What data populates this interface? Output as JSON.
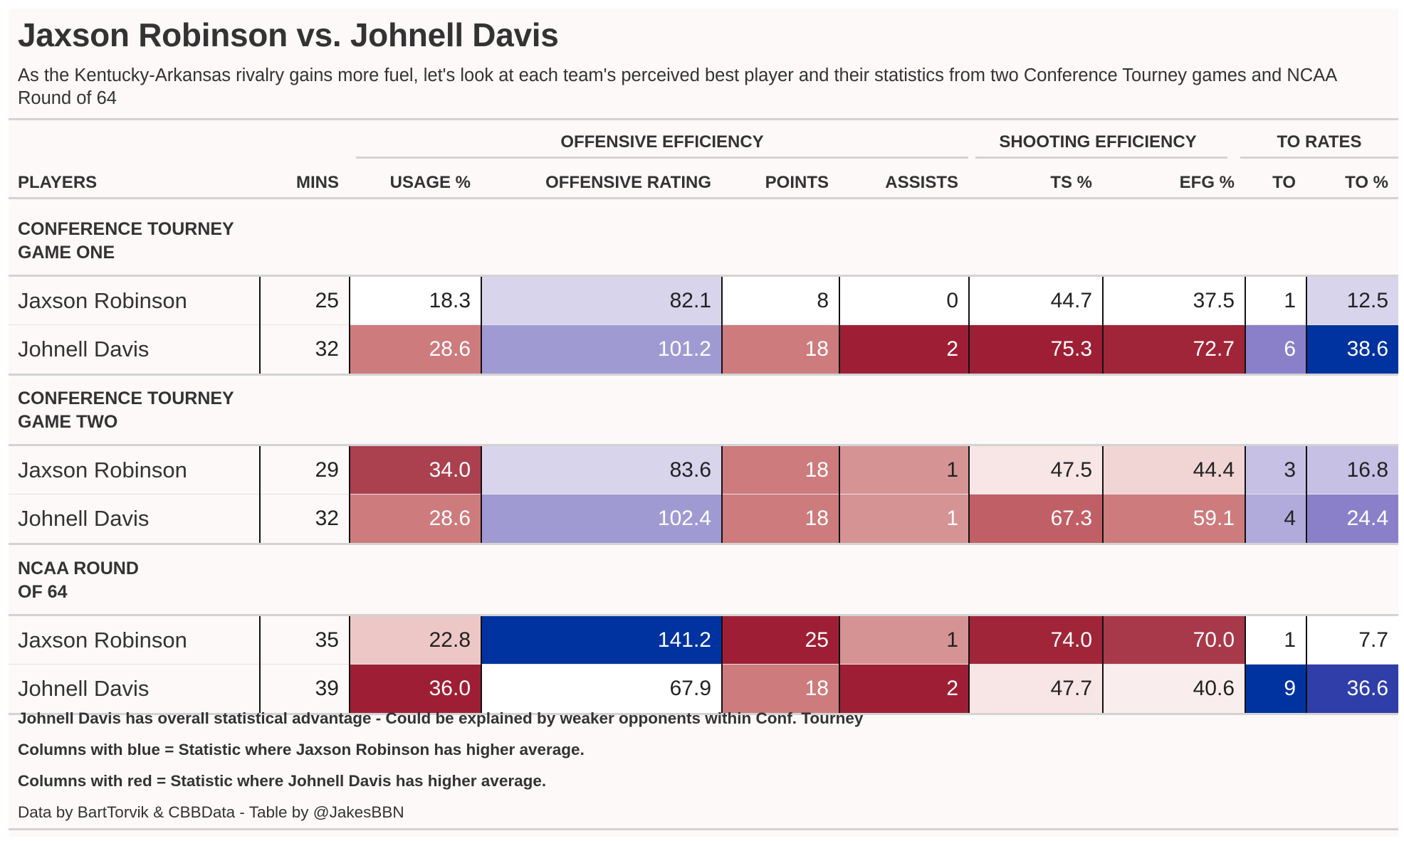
{
  "title": "Jaxson Robinson vs. Johnell Davis",
  "subtitle": "As the Kentucky-Arkansas rivalry gains more fuel, let's look at each team's perceived best player and their statistics from two Conference Tourney games and NCAA Round of 64",
  "spanners": [
    {
      "label": "OFFENSIVE EFFICIENCY"
    },
    {
      "label": "SHOOTING EFFICIENCY"
    },
    {
      "label": "TO RATES"
    }
  ],
  "columns": [
    "PLAYERS",
    "MINS",
    "USAGE %",
    "OFFENSIVE RATING",
    "POINTS",
    "ASSISTS",
    "TS %",
    "EFG %",
    "TO",
    "TO %"
  ],
  "groups": [
    {
      "label_line1": "CONFERENCE TOURNEY",
      "label_line2": "GAME ONE",
      "rows": [
        {
          "player": "Jaxson Robinson",
          "cells": [
            {
              "v": "25",
              "bg": "transparent",
              "fg": "#222222"
            },
            {
              "v": "18.3",
              "bg": "#ffffff",
              "fg": "#222222"
            },
            {
              "v": "82.1",
              "bg": "#d7d4ec",
              "fg": "#222222"
            },
            {
              "v": "8",
              "bg": "#ffffff",
              "fg": "#222222"
            },
            {
              "v": "0",
              "bg": "#ffffff",
              "fg": "#222222"
            },
            {
              "v": "44.7",
              "bg": "#ffffff",
              "fg": "#222222"
            },
            {
              "v": "37.5",
              "bg": "#ffffff",
              "fg": "#222222"
            },
            {
              "v": "1",
              "bg": "#ffffff",
              "fg": "#222222"
            },
            {
              "v": "12.5",
              "bg": "#d7d4ec",
              "fg": "#222222"
            }
          ]
        },
        {
          "player": "Johnell Davis",
          "cells": [
            {
              "v": "32",
              "bg": "transparent",
              "fg": "#222222"
            },
            {
              "v": "28.6",
              "bg": "#cd7b7d",
              "fg": "#ffffff"
            },
            {
              "v": "101.2",
              "bg": "#a09ad3",
              "fg": "#ffffff"
            },
            {
              "v": "18",
              "bg": "#cd7b7d",
              "fg": "#ffffff"
            },
            {
              "v": "2",
              "bg": "#9e1f35",
              "fg": "#ffffff"
            },
            {
              "v": "75.3",
              "bg": "#9e1f35",
              "fg": "#ffffff"
            },
            {
              "v": "72.7",
              "bg": "#a02538",
              "fg": "#ffffff"
            },
            {
              "v": "6",
              "bg": "#8a80c9",
              "fg": "#ffffff"
            },
            {
              "v": "38.6",
              "bg": "#0033a0",
              "fg": "#ffffff"
            }
          ]
        }
      ]
    },
    {
      "label_line1": "CONFERENCE TOURNEY",
      "label_line2": "GAME TWO",
      "rows": [
        {
          "player": "Jaxson Robinson",
          "cells": [
            {
              "v": "29",
              "bg": "transparent",
              "fg": "#222222"
            },
            {
              "v": "34.0",
              "bg": "#ab404f",
              "fg": "#ffffff"
            },
            {
              "v": "83.6",
              "bg": "#d7d4ec",
              "fg": "#222222"
            },
            {
              "v": "18",
              "bg": "#cd7b7d",
              "fg": "#ffffff"
            },
            {
              "v": "1",
              "bg": "#d69394",
              "fg": "#222222"
            },
            {
              "v": "47.5",
              "bg": "#f7e6e5",
              "fg": "#222222"
            },
            {
              "v": "44.4",
              "bg": "#f1d5d4",
              "fg": "#222222"
            },
            {
              "v": "3",
              "bg": "#c5c0e4",
              "fg": "#222222"
            },
            {
              "v": "16.8",
              "bg": "#c5c0e4",
              "fg": "#222222"
            }
          ]
        },
        {
          "player": "Johnell Davis",
          "cells": [
            {
              "v": "32",
              "bg": "transparent",
              "fg": "#222222"
            },
            {
              "v": "28.6",
              "bg": "#cd7b7d",
              "fg": "#ffffff"
            },
            {
              "v": "102.4",
              "bg": "#a09ad3",
              "fg": "#ffffff"
            },
            {
              "v": "18",
              "bg": "#cd7b7d",
              "fg": "#ffffff"
            },
            {
              "v": "1",
              "bg": "#d69394",
              "fg": "#ffffff"
            },
            {
              "v": "67.3",
              "bg": "#c15f66",
              "fg": "#ffffff"
            },
            {
              "v": "59.1",
              "bg": "#cd7b7d",
              "fg": "#ffffff"
            },
            {
              "v": "4",
              "bg": "#b1abdb",
              "fg": "#222222"
            },
            {
              "v": "24.4",
              "bg": "#8a80c9",
              "fg": "#ffffff"
            }
          ]
        }
      ]
    },
    {
      "label_line1": "NCAA ROUND",
      "label_line2": "OF 64",
      "rows": [
        {
          "player": "Jaxson Robinson",
          "cells": [
            {
              "v": "35",
              "bg": "transparent",
              "fg": "#222222"
            },
            {
              "v": "22.8",
              "bg": "#edc7c6",
              "fg": "#222222"
            },
            {
              "v": "141.2",
              "bg": "#0033a0",
              "fg": "#ffffff"
            },
            {
              "v": "25",
              "bg": "#9e1f35",
              "fg": "#ffffff"
            },
            {
              "v": "1",
              "bg": "#d69394",
              "fg": "#222222"
            },
            {
              "v": "74.0",
              "bg": "#a02538",
              "fg": "#ffffff"
            },
            {
              "v": "70.0",
              "bg": "#a8394a",
              "fg": "#ffffff"
            },
            {
              "v": "1",
              "bg": "#ffffff",
              "fg": "#222222"
            },
            {
              "v": "7.7",
              "bg": "#ffffff",
              "fg": "#222222"
            }
          ]
        },
        {
          "player": "Johnell Davis",
          "cells": [
            {
              "v": "39",
              "bg": "transparent",
              "fg": "#222222"
            },
            {
              "v": "36.0",
              "bg": "#9e1f35",
              "fg": "#ffffff"
            },
            {
              "v": "67.9",
              "bg": "#ffffff",
              "fg": "#222222"
            },
            {
              "v": "18",
              "bg": "#cd7b7d",
              "fg": "#ffffff"
            },
            {
              "v": "2",
              "bg": "#9e1f35",
              "fg": "#ffffff"
            },
            {
              "v": "47.7",
              "bg": "#f7e6e5",
              "fg": "#222222"
            },
            {
              "v": "40.6",
              "bg": "#f9eded",
              "fg": "#222222"
            },
            {
              "v": "9",
              "bg": "#0033a0",
              "fg": "#ffffff"
            },
            {
              "v": "36.6",
              "bg": "#2f3ea8",
              "fg": "#ffffff"
            }
          ]
        }
      ]
    }
  ],
  "notes": [
    "Johnell Davis has overall statistical advantage - Could be explained by weaker opponents within Conf. Tourney",
    "Columns with blue = Statistic where Jaxson Robinson has higher average.",
    "Columns with red = Statistic where Johnell Davis has higher average."
  ],
  "source": "Data by BartTorvik & CBBData - Table by @JakesBBN"
}
